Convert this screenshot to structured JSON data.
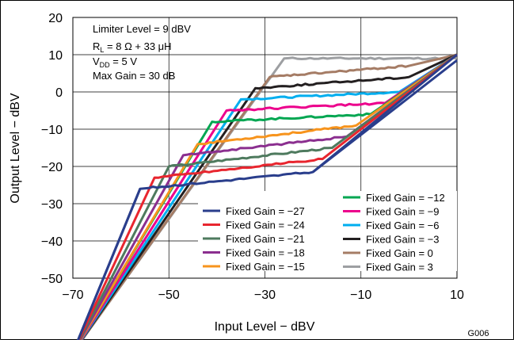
{
  "chart_data": {
    "type": "line",
    "xlabel": "Input Level − dBV",
    "ylabel": "Output Level − dBV",
    "xlim": [
      -70,
      10
    ],
    "ylim": [
      -50,
      20
    ],
    "xticks": [
      -70,
      -50,
      -30,
      -10,
      10
    ],
    "yticks": [
      20,
      10,
      0,
      -10,
      -20,
      -30,
      -40,
      -50
    ],
    "xtick_labels": [
      "−70",
      "−50",
      "−30",
      "−10",
      "10"
    ],
    "ytick_labels": [
      "20",
      "10",
      "0",
      "−10",
      "−20",
      "−30",
      "−40",
      "−50"
    ],
    "grid": true,
    "legend_position": "bottom-right",
    "figure_id": "G006",
    "annotations": {
      "line1": "Limiter Level = 9 dBV",
      "line2_main": "R",
      "line2_sub": "L",
      "line2_rest": " = 8 Ω + 33 μH",
      "line3_main": "V",
      "line3_sub": "DD",
      "line3_rest": " = 5 V",
      "line4": "Max Gain = 30 dB"
    },
    "limiter_level": 9,
    "series": [
      {
        "name": "Fixed Gain = −27",
        "gain": -27,
        "color": "#2a3e8c",
        "plateau": [
          [
            -56,
            -26
          ],
          [
            -20,
            -21.5
          ]
        ]
      },
      {
        "name": "Fixed Gain = −24",
        "gain": -24,
        "color": "#e8262f",
        "plateau": [
          [
            -53,
            -23
          ],
          [
            -18,
            -18
          ]
        ]
      },
      {
        "name": "Fixed Gain = −21",
        "gain": -21,
        "color": "#4e7a5e",
        "plateau": [
          [
            -50,
            -20
          ],
          [
            -16,
            -15
          ]
        ]
      },
      {
        "name": "Fixed Gain = −18",
        "gain": -18,
        "color": "#8b2f8f",
        "plateau": [
          [
            -47,
            -17
          ],
          [
            -13,
            -12
          ]
        ]
      },
      {
        "name": "Fixed Gain = −15",
        "gain": -15,
        "color": "#f7941d",
        "plateau": [
          [
            -44,
            -14
          ],
          [
            -11,
            -9
          ]
        ]
      },
      {
        "name": "Fixed Gain = −12",
        "gain": -12,
        "color": "#00a651",
        "plateau": [
          [
            -41,
            -8
          ],
          [
            -8,
            -6
          ]
        ]
      },
      {
        "name": "Fixed Gain = −9",
        "gain": -9,
        "color": "#ec008c",
        "plateau": [
          [
            -38,
            -5
          ],
          [
            -5,
            -3
          ]
        ]
      },
      {
        "name": "Fixed Gain = −6",
        "gain": -6,
        "color": "#00aeef",
        "plateau": [
          [
            -35,
            -2
          ],
          [
            -2,
            0
          ]
        ]
      },
      {
        "name": "Fixed Gain = −3",
        "gain": -3,
        "color": "#231f20",
        "plateau": [
          [
            -32,
            1
          ],
          [
            0,
            4
          ]
        ]
      },
      {
        "name": "Fixed Gain = 0",
        "gain": 0,
        "color": "#a57c65",
        "plateau": [
          [
            -29,
            4
          ],
          [
            0,
            7
          ]
        ]
      },
      {
        "name": "Fixed Gain = 3",
        "gain": 3,
        "color": "#9d9fa2",
        "plateau": [
          [
            -26,
            9
          ],
          [
            10,
            9
          ]
        ]
      }
    ]
  }
}
